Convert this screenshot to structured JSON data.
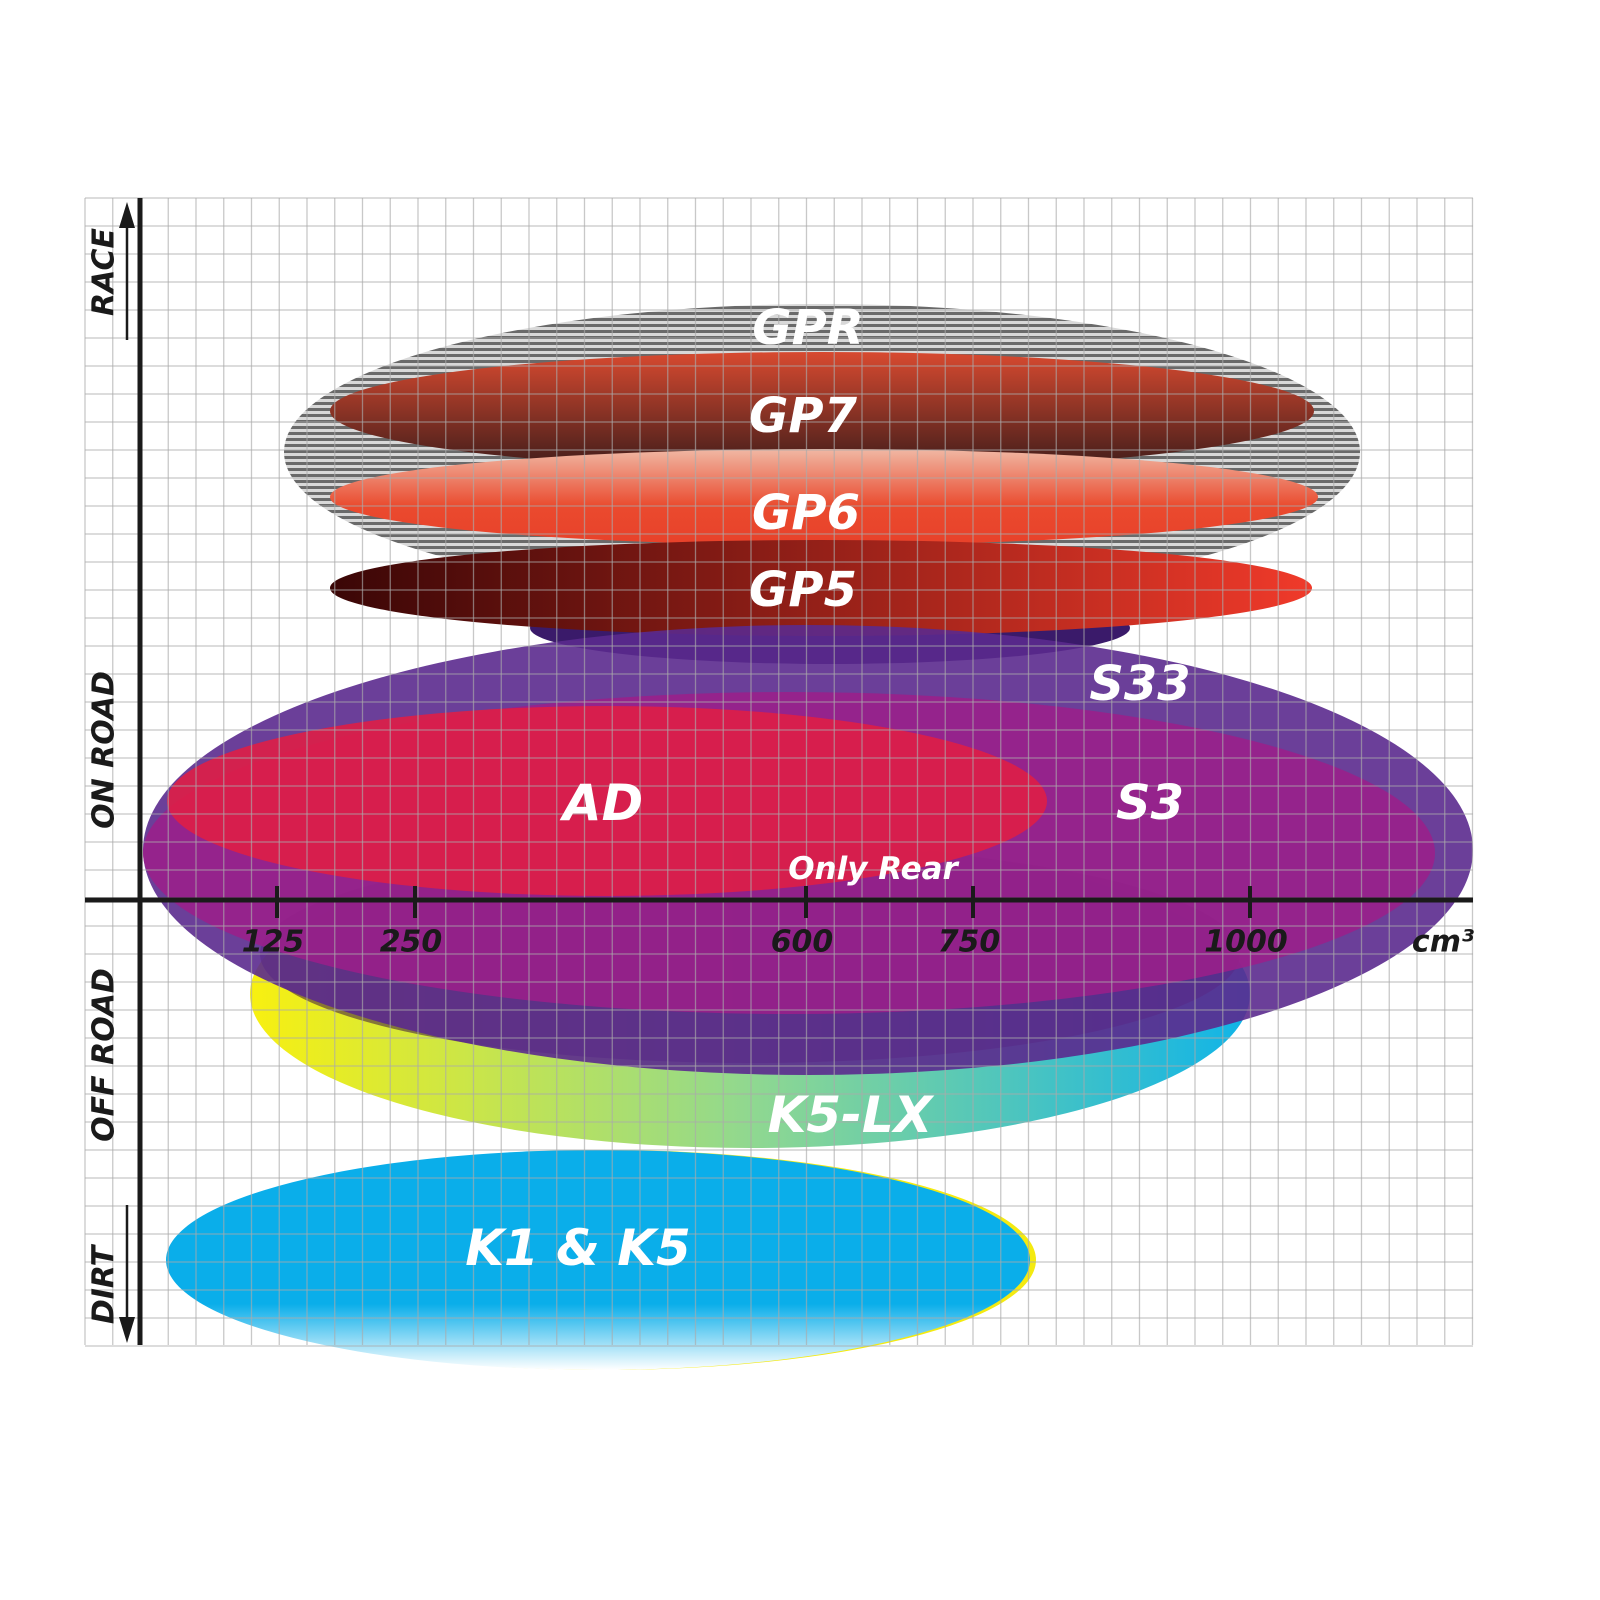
{
  "chart_data": {
    "type": "positioning-map",
    "x_axis": {
      "ticks": [
        "125",
        "250",
        "600",
        "750",
        "1000"
      ],
      "unit": "cm³"
    },
    "y_axis": {
      "labels": [
        "RACE",
        "ON ROAD",
        "OFF ROAD",
        "DIRT"
      ]
    },
    "grid": true,
    "series": [
      {
        "name": "GPR",
        "color": "#9a9a9a"
      },
      {
        "name": "GP7",
        "color": "#8a2a1e"
      },
      {
        "name": "GP6",
        "color": "#e8452c"
      },
      {
        "name": "GP5",
        "color": "#b0231a"
      },
      {
        "name": "S33",
        "color": "#5b2a8e"
      },
      {
        "name": "S3",
        "color": "#9c1f8a"
      },
      {
        "name": "AD",
        "color": "#dc1e48"
      },
      {
        "name": "K5-LX",
        "color": "#18b8e0"
      },
      {
        "name": "K1 & K5",
        "color": "#0aaeea"
      }
    ],
    "annotations": [
      "Only Rear"
    ]
  }
}
